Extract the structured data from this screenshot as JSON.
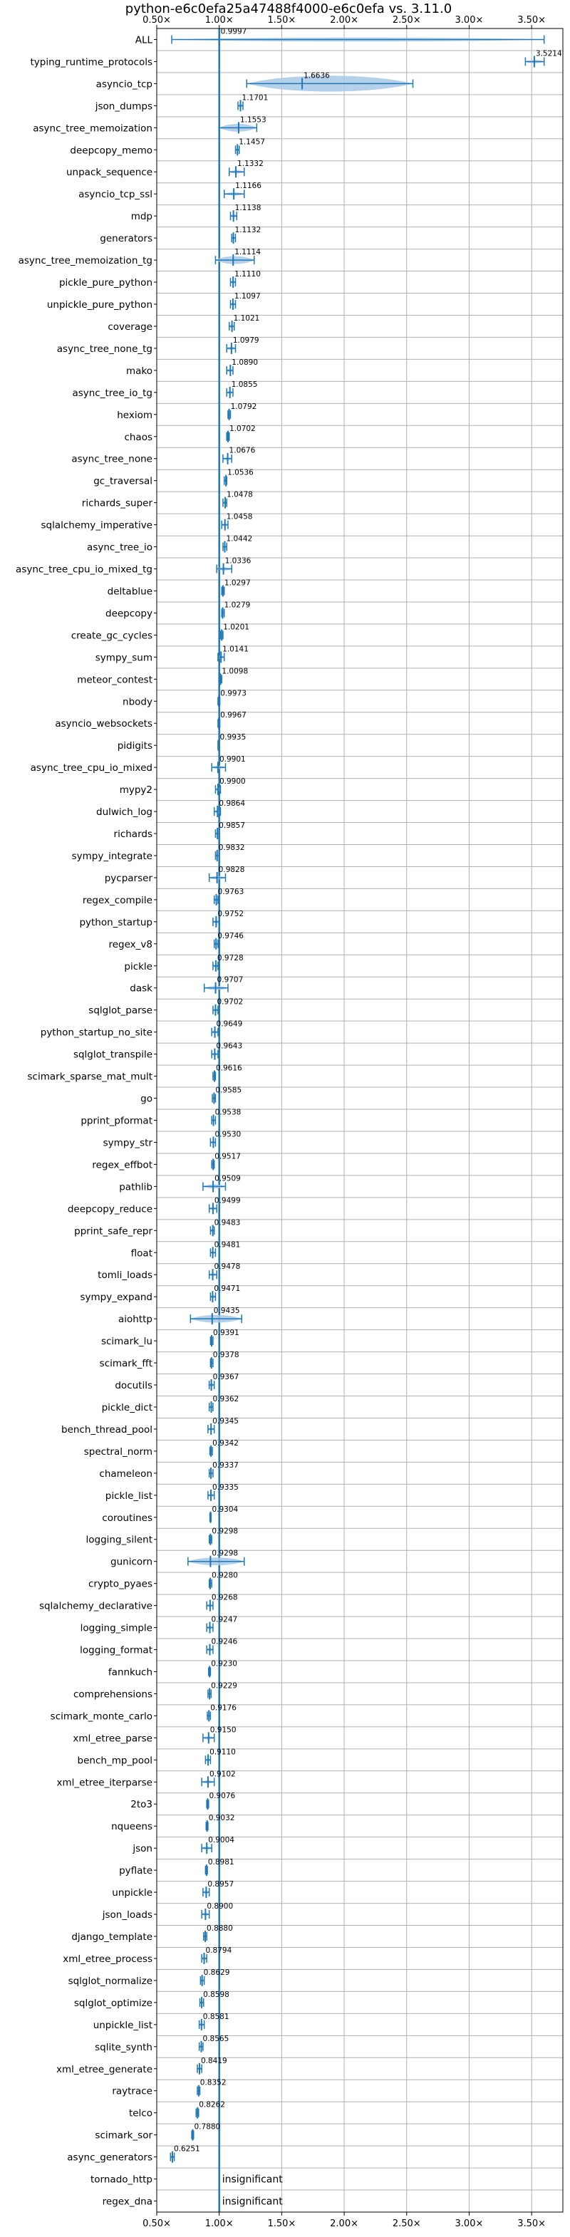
{
  "chart_data": {
    "type": "violin",
    "title": "python-e6c0efa25a47488f4000-e6c0efa vs. 3.11.0",
    "xlim": [
      0.5,
      3.75
    ],
    "xticks": [
      0.5,
      1.0,
      1.5,
      2.0,
      2.5,
      3.0,
      3.5
    ],
    "xtick_labels": [
      "0.50×",
      "1.00×",
      "1.50×",
      "2.00×",
      "2.50×",
      "3.00×",
      "3.50×"
    ],
    "reference_line": 1.0,
    "grid": true,
    "colors": {
      "violin": "#a8c8e6",
      "line": "#1f77b4",
      "grid": "#b0b0b0"
    },
    "benchmarks": [
      {
        "name": "ALL",
        "value": 0.9997,
        "label": "0.9997",
        "min": 0.62,
        "max": 3.6,
        "spread": 0.06
      },
      {
        "name": "typing_runtime_protocols",
        "value": 3.5214,
        "label": "3.5214",
        "min": 3.45,
        "max": 3.6,
        "spread": 0.05
      },
      {
        "name": "asyncio_tcp",
        "value": 1.6636,
        "label": "1.6636",
        "min": 1.22,
        "max": 2.55,
        "spread": 0.45
      },
      {
        "name": "json_dumps",
        "value": 1.1701,
        "label": "1.1701",
        "min": 1.15,
        "max": 1.19,
        "spread": 0.02
      },
      {
        "name": "async_tree_memoization",
        "value": 1.1553,
        "label": "1.1553",
        "min": 1.0,
        "max": 1.3,
        "spread": 0.12
      },
      {
        "name": "deepcopy_memo",
        "value": 1.1457,
        "label": "1.1457",
        "min": 1.13,
        "max": 1.16,
        "spread": 0.02
      },
      {
        "name": "unpack_sequence",
        "value": 1.1332,
        "label": "1.1332",
        "min": 1.08,
        "max": 1.2,
        "spread": 0.04
      },
      {
        "name": "asyncio_tcp_ssl",
        "value": 1.1166,
        "label": "1.1166",
        "min": 1.04,
        "max": 1.2,
        "spread": 0.04
      },
      {
        "name": "mdp",
        "value": 1.1138,
        "label": "1.1138",
        "min": 1.09,
        "max": 1.14,
        "spread": 0.02
      },
      {
        "name": "generators",
        "value": 1.1132,
        "label": "1.1132",
        "min": 1.1,
        "max": 1.13,
        "spread": 0.01
      },
      {
        "name": "async_tree_memoization_tg",
        "value": 1.1114,
        "label": "1.1114",
        "min": 0.97,
        "max": 1.28,
        "spread": 0.12
      },
      {
        "name": "pickle_pure_python",
        "value": 1.111,
        "label": "1.1110",
        "min": 1.09,
        "max": 1.13,
        "spread": 0.015
      },
      {
        "name": "unpickle_pure_python",
        "value": 1.1097,
        "label": "1.1097",
        "min": 1.09,
        "max": 1.13,
        "spread": 0.015
      },
      {
        "name": "coverage",
        "value": 1.1021,
        "label": "1.1021",
        "min": 1.08,
        "max": 1.12,
        "spread": 0.02
      },
      {
        "name": "async_tree_none_tg",
        "value": 1.0979,
        "label": "1.0979",
        "min": 1.06,
        "max": 1.13,
        "spread": 0.03
      },
      {
        "name": "mako",
        "value": 1.089,
        "label": "1.0890",
        "min": 1.06,
        "max": 1.11,
        "spread": 0.02
      },
      {
        "name": "async_tree_io_tg",
        "value": 1.0855,
        "label": "1.0855",
        "min": 1.06,
        "max": 1.11,
        "spread": 0.02
      },
      {
        "name": "hexiom",
        "value": 1.0792,
        "label": "1.0792",
        "min": 1.07,
        "max": 1.09,
        "spread": 0.01
      },
      {
        "name": "chaos",
        "value": 1.0702,
        "label": "1.0702",
        "min": 1.06,
        "max": 1.08,
        "spread": 0.01
      },
      {
        "name": "async_tree_none",
        "value": 1.0676,
        "label": "1.0676",
        "min": 1.03,
        "max": 1.1,
        "spread": 0.03
      },
      {
        "name": "gc_traversal",
        "value": 1.0536,
        "label": "1.0536",
        "min": 1.04,
        "max": 1.06,
        "spread": 0.01
      },
      {
        "name": "richards_super",
        "value": 1.0478,
        "label": "1.0478",
        "min": 1.03,
        "max": 1.06,
        "spread": 0.015
      },
      {
        "name": "sqlalchemy_imperative",
        "value": 1.0458,
        "label": "1.0458",
        "min": 1.02,
        "max": 1.07,
        "spread": 0.02
      },
      {
        "name": "async_tree_io",
        "value": 1.0442,
        "label": "1.0442",
        "min": 1.03,
        "max": 1.06,
        "spread": 0.015
      },
      {
        "name": "async_tree_cpu_io_mixed_tg",
        "value": 1.0336,
        "label": "1.0336",
        "min": 0.98,
        "max": 1.1,
        "spread": 0.04
      },
      {
        "name": "deltablue",
        "value": 1.0297,
        "label": "1.0297",
        "min": 1.02,
        "max": 1.04,
        "spread": 0.01
      },
      {
        "name": "deepcopy",
        "value": 1.0279,
        "label": "1.0279",
        "min": 1.02,
        "max": 1.04,
        "spread": 0.01
      },
      {
        "name": "create_gc_cycles",
        "value": 1.0201,
        "label": "1.0201",
        "min": 1.01,
        "max": 1.03,
        "spread": 0.01
      },
      {
        "name": "sympy_sum",
        "value": 1.0141,
        "label": "1.0141",
        "min": 0.99,
        "max": 1.04,
        "spread": 0.02
      },
      {
        "name": "meteor_contest",
        "value": 1.0098,
        "label": "1.0098",
        "min": 1.0,
        "max": 1.02,
        "spread": 0.01
      },
      {
        "name": "nbody",
        "value": 0.9973,
        "label": "0.9973",
        "min": 0.99,
        "max": 1.005,
        "spread": 0.005
      },
      {
        "name": "asyncio_websockets",
        "value": 0.9967,
        "label": "0.9967",
        "min": 0.99,
        "max": 1.005,
        "spread": 0.005
      },
      {
        "name": "pidigits",
        "value": 0.9935,
        "label": "0.9935",
        "min": 0.99,
        "max": 1.0,
        "spread": 0.005
      },
      {
        "name": "async_tree_cpu_io_mixed",
        "value": 0.9901,
        "label": "0.9901",
        "min": 0.94,
        "max": 1.05,
        "spread": 0.04
      },
      {
        "name": "mypy2",
        "value": 0.99,
        "label": "0.9900",
        "min": 0.97,
        "max": 1.01,
        "spread": 0.015
      },
      {
        "name": "dulwich_log",
        "value": 0.9864,
        "label": "0.9864",
        "min": 0.96,
        "max": 1.01,
        "spread": 0.02
      },
      {
        "name": "richards",
        "value": 0.9857,
        "label": "0.9857",
        "min": 0.97,
        "max": 1.0,
        "spread": 0.01
      },
      {
        "name": "sympy_integrate",
        "value": 0.9832,
        "label": "0.9832",
        "min": 0.97,
        "max": 1.0,
        "spread": 0.01
      },
      {
        "name": "pycparser",
        "value": 0.9828,
        "label": "0.9828",
        "min": 0.92,
        "max": 1.05,
        "spread": 0.05
      },
      {
        "name": "regex_compile",
        "value": 0.9763,
        "label": "0.9763",
        "min": 0.96,
        "max": 0.99,
        "spread": 0.01
      },
      {
        "name": "python_startup",
        "value": 0.9752,
        "label": "0.9752",
        "min": 0.95,
        "max": 1.0,
        "spread": 0.02
      },
      {
        "name": "regex_v8",
        "value": 0.9746,
        "label": "0.9746",
        "min": 0.96,
        "max": 0.99,
        "spread": 0.01
      },
      {
        "name": "pickle",
        "value": 0.9728,
        "label": "0.9728",
        "min": 0.95,
        "max": 0.99,
        "spread": 0.015
      },
      {
        "name": "dask",
        "value": 0.9707,
        "label": "0.9707",
        "min": 0.88,
        "max": 1.07,
        "spread": 0.06
      },
      {
        "name": "sqlglot_parse",
        "value": 0.9702,
        "label": "0.9702",
        "min": 0.95,
        "max": 0.99,
        "spread": 0.015
      },
      {
        "name": "python_startup_no_site",
        "value": 0.9649,
        "label": "0.9649",
        "min": 0.94,
        "max": 0.99,
        "spread": 0.02
      },
      {
        "name": "sqlglot_transpile",
        "value": 0.9643,
        "label": "0.9643",
        "min": 0.94,
        "max": 0.99,
        "spread": 0.02
      },
      {
        "name": "scimark_sparse_mat_mult",
        "value": 0.9616,
        "label": "0.9616",
        "min": 0.95,
        "max": 0.97,
        "spread": 0.01
      },
      {
        "name": "go",
        "value": 0.9585,
        "label": "0.9585",
        "min": 0.945,
        "max": 0.97,
        "spread": 0.01
      },
      {
        "name": "pprint_pformat",
        "value": 0.9538,
        "label": "0.9538",
        "min": 0.94,
        "max": 0.97,
        "spread": 0.01
      },
      {
        "name": "sympy_str",
        "value": 0.953,
        "label": "0.9530",
        "min": 0.93,
        "max": 0.97,
        "spread": 0.015
      },
      {
        "name": "regex_effbot",
        "value": 0.9517,
        "label": "0.9517",
        "min": 0.94,
        "max": 0.96,
        "spread": 0.01
      },
      {
        "name": "pathlib",
        "value": 0.9509,
        "label": "0.9509",
        "min": 0.87,
        "max": 1.05,
        "spread": 0.06
      },
      {
        "name": "deepcopy_reduce",
        "value": 0.9499,
        "label": "0.9499",
        "min": 0.92,
        "max": 0.98,
        "spread": 0.02
      },
      {
        "name": "pprint_safe_repr",
        "value": 0.9483,
        "label": "0.9483",
        "min": 0.93,
        "max": 0.96,
        "spread": 0.01
      },
      {
        "name": "float",
        "value": 0.9481,
        "label": "0.9481",
        "min": 0.93,
        "max": 0.97,
        "spread": 0.015
      },
      {
        "name": "tomli_loads",
        "value": 0.9478,
        "label": "0.9478",
        "min": 0.92,
        "max": 0.98,
        "spread": 0.02
      },
      {
        "name": "sympy_expand",
        "value": 0.9471,
        "label": "0.9471",
        "min": 0.93,
        "max": 0.97,
        "spread": 0.015
      },
      {
        "name": "aiohttp",
        "value": 0.9435,
        "label": "0.9435",
        "min": 0.77,
        "max": 1.18,
        "spread": 0.12
      },
      {
        "name": "scimark_lu",
        "value": 0.9391,
        "label": "0.9391",
        "min": 0.93,
        "max": 0.95,
        "spread": 0.01
      },
      {
        "name": "scimark_fft",
        "value": 0.9378,
        "label": "0.9378",
        "min": 0.93,
        "max": 0.95,
        "spread": 0.01
      },
      {
        "name": "docutils",
        "value": 0.9367,
        "label": "0.9367",
        "min": 0.92,
        "max": 0.96,
        "spread": 0.015
      },
      {
        "name": "pickle_dict",
        "value": 0.9362,
        "label": "0.9362",
        "min": 0.92,
        "max": 0.95,
        "spread": 0.01
      },
      {
        "name": "bench_thread_pool",
        "value": 0.9345,
        "label": "0.9345",
        "min": 0.91,
        "max": 0.96,
        "spread": 0.02
      },
      {
        "name": "spectral_norm",
        "value": 0.9342,
        "label": "0.9342",
        "min": 0.925,
        "max": 0.945,
        "spread": 0.008
      },
      {
        "name": "chameleon",
        "value": 0.9337,
        "label": "0.9337",
        "min": 0.92,
        "max": 0.95,
        "spread": 0.01
      },
      {
        "name": "pickle_list",
        "value": 0.9335,
        "label": "0.9335",
        "min": 0.91,
        "max": 0.96,
        "spread": 0.015
      },
      {
        "name": "coroutines",
        "value": 0.9304,
        "label": "0.9304",
        "min": 0.925,
        "max": 0.935,
        "spread": 0.005
      },
      {
        "name": "logging_silent",
        "value": 0.9298,
        "label": "0.9298",
        "min": 0.92,
        "max": 0.94,
        "spread": 0.008
      },
      {
        "name": "gunicorn",
        "value": 0.9298,
        "label": "0.9298",
        "min": 0.75,
        "max": 1.2,
        "spread": 0.12
      },
      {
        "name": "crypto_pyaes",
        "value": 0.928,
        "label": "0.9280",
        "min": 0.92,
        "max": 0.94,
        "spread": 0.008
      },
      {
        "name": "sqlalchemy_declarative",
        "value": 0.9268,
        "label": "0.9268",
        "min": 0.9,
        "max": 0.95,
        "spread": 0.015
      },
      {
        "name": "logging_simple",
        "value": 0.9247,
        "label": "0.9247",
        "min": 0.9,
        "max": 0.95,
        "spread": 0.015
      },
      {
        "name": "logging_format",
        "value": 0.9246,
        "label": "0.9246",
        "min": 0.9,
        "max": 0.95,
        "spread": 0.015
      },
      {
        "name": "fannkuch",
        "value": 0.923,
        "label": "0.9230",
        "min": 0.915,
        "max": 0.93,
        "spread": 0.006
      },
      {
        "name": "comprehensions",
        "value": 0.9229,
        "label": "0.9229",
        "min": 0.91,
        "max": 0.935,
        "spread": 0.01
      },
      {
        "name": "scimark_monte_carlo",
        "value": 0.9176,
        "label": "0.9176",
        "min": 0.905,
        "max": 0.93,
        "spread": 0.01
      },
      {
        "name": "xml_etree_parse",
        "value": 0.915,
        "label": "0.9150",
        "min": 0.87,
        "max": 0.96,
        "spread": 0.03
      },
      {
        "name": "bench_mp_pool",
        "value": 0.911,
        "label": "0.9110",
        "min": 0.89,
        "max": 0.93,
        "spread": 0.015
      },
      {
        "name": "xml_etree_iterparse",
        "value": 0.9102,
        "label": "0.9102",
        "min": 0.86,
        "max": 0.96,
        "spread": 0.035
      },
      {
        "name": "2to3",
        "value": 0.9076,
        "label": "0.9076",
        "min": 0.9,
        "max": 0.915,
        "spread": 0.006
      },
      {
        "name": "nqueens",
        "value": 0.9032,
        "label": "0.9032",
        "min": 0.895,
        "max": 0.91,
        "spread": 0.006
      },
      {
        "name": "json",
        "value": 0.9004,
        "label": "0.9004",
        "min": 0.86,
        "max": 0.94,
        "spread": 0.03
      },
      {
        "name": "pyflate",
        "value": 0.8981,
        "label": "0.8981",
        "min": 0.89,
        "max": 0.905,
        "spread": 0.006
      },
      {
        "name": "unpickle",
        "value": 0.8957,
        "label": "0.8957",
        "min": 0.87,
        "max": 0.92,
        "spread": 0.015
      },
      {
        "name": "json_loads",
        "value": 0.89,
        "label": "0.8900",
        "min": 0.86,
        "max": 0.92,
        "spread": 0.02
      },
      {
        "name": "django_template",
        "value": 0.888,
        "label": "0.8880",
        "min": 0.875,
        "max": 0.9,
        "spread": 0.008
      },
      {
        "name": "xml_etree_process",
        "value": 0.8794,
        "label": "0.8794",
        "min": 0.86,
        "max": 0.9,
        "spread": 0.012
      },
      {
        "name": "sqlglot_normalize",
        "value": 0.8629,
        "label": "0.8629",
        "min": 0.85,
        "max": 0.88,
        "spread": 0.01
      },
      {
        "name": "sqlglot_optimize",
        "value": 0.8598,
        "label": "0.8598",
        "min": 0.845,
        "max": 0.875,
        "spread": 0.01
      },
      {
        "name": "unpickle_list",
        "value": 0.8581,
        "label": "0.8581",
        "min": 0.84,
        "max": 0.88,
        "spread": 0.012
      },
      {
        "name": "sqlite_synth",
        "value": 0.8565,
        "label": "0.8565",
        "min": 0.84,
        "max": 0.87,
        "spread": 0.01
      },
      {
        "name": "xml_etree_generate",
        "value": 0.8419,
        "label": "0.8419",
        "min": 0.825,
        "max": 0.86,
        "spread": 0.012
      },
      {
        "name": "raytrace",
        "value": 0.8352,
        "label": "0.8352",
        "min": 0.825,
        "max": 0.845,
        "spread": 0.008
      },
      {
        "name": "telco",
        "value": 0.8262,
        "label": "0.8262",
        "min": 0.815,
        "max": 0.835,
        "spread": 0.008
      },
      {
        "name": "scimark_sor",
        "value": 0.788,
        "label": "0.7880",
        "min": 0.78,
        "max": 0.795,
        "spread": 0.006
      },
      {
        "name": "async_generators",
        "value": 0.6251,
        "label": "0.6251",
        "min": 0.61,
        "max": 0.64,
        "spread": 0.012
      },
      {
        "name": "tornado_http",
        "value": null,
        "label": "insignificant"
      },
      {
        "name": "regex_dna",
        "value": null,
        "label": "insignificant"
      }
    ]
  }
}
